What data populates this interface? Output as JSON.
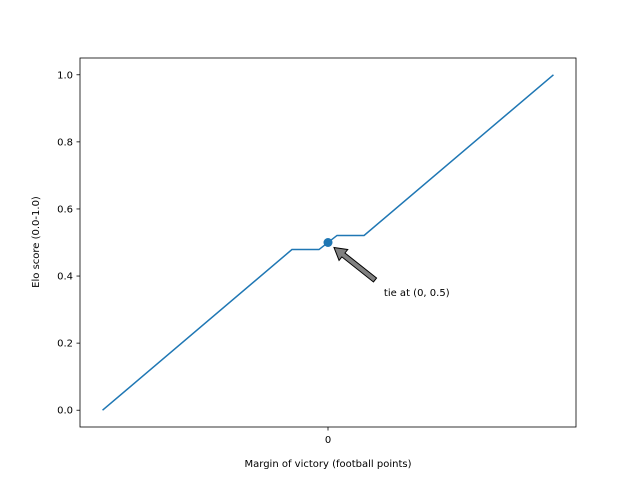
{
  "chart_data": {
    "type": "line",
    "title": "",
    "xlabel": "Margin of victory (football points)",
    "ylabel": "Elo score (0.0-1.0)",
    "xlim": [
      -27.5,
      27.5
    ],
    "ylim": [
      -0.05,
      1.05
    ],
    "xticks": [
      0
    ],
    "xtick_labels": [
      "0"
    ],
    "yticks": [
      0.0,
      0.2,
      0.4,
      0.6,
      0.8,
      1.0
    ],
    "ytick_labels": [
      "0.0",
      "0.2",
      "0.4",
      "0.6",
      "0.8",
      "1.0"
    ],
    "grid": false,
    "series": [
      {
        "x": [
          -25,
          -4,
          -1,
          1,
          4,
          25
        ],
        "y": [
          0.0,
          0.479,
          0.479,
          0.521,
          0.521,
          1.0
        ],
        "color": "#1f77b4"
      }
    ],
    "points": [
      {
        "x": 0,
        "y": 0.5,
        "color": "#1f77b4"
      }
    ],
    "annotation": {
      "text": "tie at (0, 0.5)",
      "xy": [
        0,
        0.5
      ],
      "text_xy": [
        6.2,
        0.34
      ]
    }
  }
}
